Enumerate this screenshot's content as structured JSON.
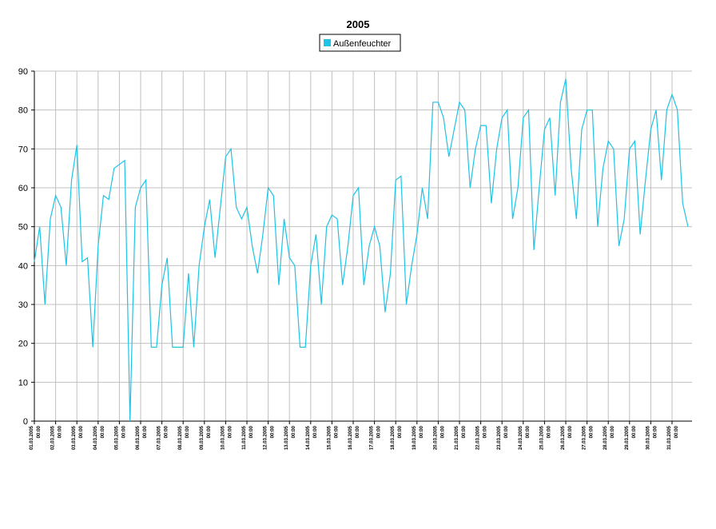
{
  "chart_data": {
    "type": "line",
    "title": "2005",
    "categories": [
      "01.03.2005 00:00",
      null,
      null,
      null,
      "02.03.2005 00:00",
      null,
      null,
      null,
      "03.03.2005 00:00",
      null,
      null,
      null,
      "04.03.2005 00:00",
      null,
      null,
      null,
      "05.03.2005 00:00",
      null,
      null,
      null,
      "06.03.2005 00:00",
      null,
      null,
      null,
      "07.03.2005 00:00",
      null,
      null,
      null,
      "08.03.2005 00:00",
      null,
      null,
      null,
      "09.03.2005 00:00",
      null,
      null,
      null,
      "10.03.2005 00:00",
      null,
      null,
      null,
      "11.03.2005 00:00",
      null,
      null,
      null,
      "12.03.2005 00:00",
      null,
      null,
      null,
      "13.03.2005 00:00",
      null,
      null,
      null,
      "14.03.2005 00:00",
      null,
      null,
      null,
      "15.03.2005 00:00",
      null,
      null,
      null,
      "16.03.2005 00:00",
      null,
      null,
      null,
      "17.03.2005 00:00",
      null,
      null,
      null,
      "18.03.2005 00:00",
      null,
      null,
      null,
      "19.03.2005 00:00",
      null,
      null,
      null,
      "20.03.2005 00:00",
      null,
      null,
      null,
      "21.03.2005 00:00",
      null,
      null,
      null,
      "22.03.2005 00:00",
      null,
      null,
      null,
      "23.03.2005 00:00",
      null,
      null,
      null,
      "24.03.2005 00:00",
      null,
      null,
      null,
      "25.03.2005 00:00",
      null,
      null,
      null,
      "26.03.2005 00:00",
      null,
      null,
      null,
      "27.03.2005 00:00",
      null,
      null,
      null,
      "28.03.2005 00:00",
      null,
      null,
      null,
      "29.03.2005 00:00",
      null,
      null,
      null,
      "30.03.2005 00:00",
      null,
      null,
      null,
      "31.03.2005 00:00",
      null,
      null,
      null
    ],
    "series": [
      {
        "name": "Außenfeuchter",
        "color": "#1ec3e6",
        "values": [
          41,
          50,
          30,
          52,
          58,
          55,
          40,
          62,
          71,
          41,
          42,
          19,
          45,
          58,
          57,
          65,
          66,
          67,
          0,
          55,
          60,
          62,
          19,
          19,
          35,
          42,
          19,
          19,
          19,
          38,
          19,
          40,
          50,
          57,
          42,
          55,
          68,
          70,
          55,
          52,
          55,
          45,
          38,
          48,
          60,
          58,
          35,
          52,
          42,
          40,
          19,
          19,
          40,
          48,
          30,
          50,
          53,
          52,
          35,
          45,
          58,
          60,
          35,
          45,
          50,
          45,
          28,
          38,
          62,
          63,
          30,
          40,
          48,
          60,
          52,
          82,
          82,
          78,
          68,
          75,
          82,
          80,
          60,
          70,
          76,
          76,
          56,
          70,
          78,
          80,
          52,
          60,
          78,
          80,
          44,
          60,
          75,
          78,
          58,
          82,
          88,
          65,
          52,
          75,
          80,
          80,
          50,
          65,
          72,
          70,
          45,
          52,
          70,
          72,
          48,
          62,
          75,
          80,
          62,
          80,
          84,
          80,
          56,
          50
        ]
      }
    ],
    "ylim": [
      0,
      90
    ],
    "yticks": [
      0,
      10,
      20,
      30,
      40,
      50,
      60,
      70,
      80,
      90
    ],
    "grid": true
  }
}
